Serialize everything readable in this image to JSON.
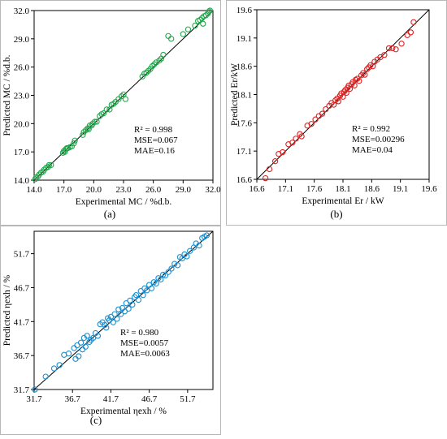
{
  "charts": [
    {
      "panel": "(a)",
      "xlabel": "Experimental MC / %d.b.",
      "ylabel": "Predicted MC / %d.b.",
      "ticks": [
        "14.0",
        "17.0",
        "20.0",
        "23.0",
        "26.0",
        "29.0",
        "32.0"
      ],
      "stats": [
        "R² = 0.998",
        "MSE=0.067",
        "MAE=0.16"
      ],
      "color": "#1fa84a",
      "lim": [
        14,
        32
      ],
      "points": [
        [
          14.1,
          14.1
        ],
        [
          14.2,
          14.3
        ],
        [
          14.4,
          14.4
        ],
        [
          14.5,
          14.6
        ],
        [
          14.7,
          14.8
        ],
        [
          14.9,
          14.9
        ],
        [
          15.0,
          15.1
        ],
        [
          15.2,
          15.3
        ],
        [
          15.4,
          15.4
        ],
        [
          15.5,
          15.6
        ],
        [
          15.7,
          15.6
        ],
        [
          16.9,
          16.9
        ],
        [
          17.0,
          17.1
        ],
        [
          17.1,
          17.0
        ],
        [
          17.2,
          17.3
        ],
        [
          17.3,
          17.4
        ],
        [
          17.4,
          17.4
        ],
        [
          17.6,
          17.5
        ],
        [
          17.8,
          17.6
        ],
        [
          18.0,
          17.9
        ],
        [
          18.1,
          18.2
        ],
        [
          18.9,
          18.8
        ],
        [
          19.0,
          19.1
        ],
        [
          19.2,
          19.3
        ],
        [
          19.4,
          19.5
        ],
        [
          19.5,
          19.4
        ],
        [
          19.6,
          19.8
        ],
        [
          19.8,
          19.8
        ],
        [
          19.9,
          20.0
        ],
        [
          20.1,
          20.2
        ],
        [
          20.3,
          20.2
        ],
        [
          20.6,
          20.8
        ],
        [
          20.8,
          21.0
        ],
        [
          21.0,
          21.1
        ],
        [
          21.3,
          21.5
        ],
        [
          21.6,
          21.5
        ],
        [
          21.8,
          22.0
        ],
        [
          22.0,
          22.1
        ],
        [
          22.2,
          22.3
        ],
        [
          22.5,
          22.6
        ],
        [
          22.8,
          22.9
        ],
        [
          23.0,
          23.1
        ],
        [
          23.2,
          22.6
        ],
        [
          24.9,
          25.0
        ],
        [
          25.1,
          25.3
        ],
        [
          25.3,
          25.4
        ],
        [
          25.5,
          25.6
        ],
        [
          25.7,
          25.8
        ],
        [
          25.9,
          26.1
        ],
        [
          26.1,
          26.3
        ],
        [
          26.3,
          26.5
        ],
        [
          26.6,
          26.7
        ],
        [
          26.8,
          26.9
        ],
        [
          27.0,
          27.3
        ],
        [
          27.5,
          29.3
        ],
        [
          27.8,
          29.0
        ],
        [
          29.0,
          29.5
        ],
        [
          29.5,
          30.0
        ],
        [
          30.2,
          30.4
        ],
        [
          30.5,
          30.9
        ],
        [
          30.7,
          31.0
        ],
        [
          30.9,
          31.2
        ],
        [
          31.0,
          30.6
        ],
        [
          31.1,
          31.4
        ],
        [
          31.3,
          31.5
        ],
        [
          31.5,
          31.7
        ],
        [
          31.6,
          31.9
        ],
        [
          31.7,
          32.0
        ]
      ]
    },
    {
      "panel": "(b)",
      "xlabel": "Experimental Er / kW",
      "ylabel": "Predicted Er/kW",
      "ticks": [
        "16.6",
        "17.1",
        "17.6",
        "18.1",
        "18.6",
        "19.1",
        "19.6"
      ],
      "stats": [
        "R² = 0.992",
        "MSE=0.00296",
        "MAE=0.04"
      ],
      "color": "#e02020",
      "lim": [
        16.6,
        19.6
      ],
      "points": [
        [
          16.75,
          16.62
        ],
        [
          16.82,
          16.78
        ],
        [
          16.92,
          16.92
        ],
        [
          16.98,
          17.05
        ],
        [
          17.05,
          17.08
        ],
        [
          17.15,
          17.22
        ],
        [
          17.22,
          17.25
        ],
        [
          17.28,
          17.32
        ],
        [
          17.35,
          17.4
        ],
        [
          17.38,
          17.36
        ],
        [
          17.48,
          17.55
        ],
        [
          17.55,
          17.58
        ],
        [
          17.62,
          17.66
        ],
        [
          17.68,
          17.72
        ],
        [
          17.74,
          17.76
        ],
        [
          17.8,
          17.84
        ],
        [
          17.86,
          17.9
        ],
        [
          17.9,
          17.95
        ],
        [
          17.94,
          17.92
        ],
        [
          17.97,
          18.0
        ],
        [
          18.0,
          18.03
        ],
        [
          18.02,
          17.98
        ],
        [
          18.05,
          18.08
        ],
        [
          18.07,
          18.12
        ],
        [
          18.1,
          18.06
        ],
        [
          18.12,
          18.15
        ],
        [
          18.14,
          18.18
        ],
        [
          18.16,
          18.13
        ],
        [
          18.18,
          18.22
        ],
        [
          18.2,
          18.26
        ],
        [
          18.22,
          18.2
        ],
        [
          18.25,
          18.28
        ],
        [
          18.27,
          18.32
        ],
        [
          18.3,
          18.26
        ],
        [
          18.32,
          18.36
        ],
        [
          18.35,
          18.38
        ],
        [
          18.38,
          18.34
        ],
        [
          18.42,
          18.44
        ],
        [
          18.45,
          18.48
        ],
        [
          18.48,
          18.45
        ],
        [
          18.52,
          18.55
        ],
        [
          18.55,
          18.58
        ],
        [
          18.58,
          18.62
        ],
        [
          18.62,
          18.6
        ],
        [
          18.65,
          18.68
        ],
        [
          18.7,
          18.72
        ],
        [
          18.75,
          18.76
        ],
        [
          18.82,
          18.8
        ],
        [
          18.9,
          18.92
        ],
        [
          18.96,
          18.92
        ],
        [
          19.02,
          18.9
        ],
        [
          19.12,
          19.0
        ],
        [
          19.22,
          19.15
        ],
        [
          19.28,
          19.2
        ],
        [
          19.33,
          19.38
        ]
      ]
    },
    {
      "panel": "(c)",
      "xlabel": "Experimental ηexh / %",
      "ylabel": "Predicted ηexh / %",
      "ticks": [
        "31.7",
        "36.7",
        "41.7",
        "46.7",
        "51.7"
      ],
      "stats": [
        "R² = 0.980",
        "MSE=0.0057",
        "MAE=0.0063"
      ],
      "color": "#1b8fd0",
      "lim": [
        31.7,
        55.0
      ],
      "points": [
        [
          31.8,
          31.7
        ],
        [
          33.2,
          33.6
        ],
        [
          34.3,
          34.8
        ],
        [
          35.0,
          35.3
        ],
        [
          35.6,
          36.8
        ],
        [
          36.2,
          37.0
        ],
        [
          36.9,
          37.8
        ],
        [
          37.1,
          36.2
        ],
        [
          37.3,
          38.2
        ],
        [
          37.5,
          36.6
        ],
        [
          37.8,
          38.6
        ],
        [
          38.0,
          37.6
        ],
        [
          38.2,
          39.3
        ],
        [
          38.4,
          38.0
        ],
        [
          38.6,
          39.6
        ],
        [
          38.9,
          38.7
        ],
        [
          39.1,
          39.0
        ],
        [
          39.4,
          39.3
        ],
        [
          39.7,
          40.0
        ],
        [
          40.0,
          39.6
        ],
        [
          40.3,
          41.3
        ],
        [
          40.6,
          41.6
        ],
        [
          40.9,
          41.2
        ],
        [
          41.1,
          40.8
        ],
        [
          41.3,
          42.2
        ],
        [
          41.5,
          41.9
        ],
        [
          41.7,
          42.4
        ],
        [
          42.0,
          41.6
        ],
        [
          42.2,
          42.8
        ],
        [
          42.5,
          42.1
        ],
        [
          42.7,
          43.5
        ],
        [
          43.0,
          42.8
        ],
        [
          43.2,
          43.7
        ],
        [
          43.5,
          43.2
        ],
        [
          43.7,
          44.4
        ],
        [
          44.0,
          43.6
        ],
        [
          44.2,
          44.8
        ],
        [
          44.5,
          44.2
        ],
        [
          44.8,
          45.3
        ],
        [
          45.0,
          45.6
        ],
        [
          45.3,
          44.9
        ],
        [
          45.6,
          46.2
        ],
        [
          45.9,
          45.6
        ],
        [
          46.1,
          46.6
        ],
        [
          46.4,
          46.3
        ],
        [
          46.7,
          47.1
        ],
        [
          47.0,
          46.6
        ],
        [
          47.3,
          47.5
        ],
        [
          47.6,
          47.3
        ],
        [
          47.9,
          48.1
        ],
        [
          48.2,
          47.9
        ],
        [
          48.5,
          48.6
        ],
        [
          48.8,
          48.5
        ],
        [
          49.2,
          49.0
        ],
        [
          49.6,
          49.5
        ],
        [
          50.0,
          50.2
        ],
        [
          50.4,
          50.0
        ],
        [
          50.7,
          51.2
        ],
        [
          51.0,
          51.0
        ],
        [
          51.3,
          51.6
        ],
        [
          51.6,
          51.3
        ],
        [
          52.0,
          52.1
        ],
        [
          52.5,
          52.6
        ],
        [
          52.8,
          53.2
        ],
        [
          53.2,
          52.9
        ],
        [
          53.6,
          54.0
        ],
        [
          53.9,
          54.2
        ],
        [
          54.2,
          54.4
        ]
      ]
    }
  ]
}
